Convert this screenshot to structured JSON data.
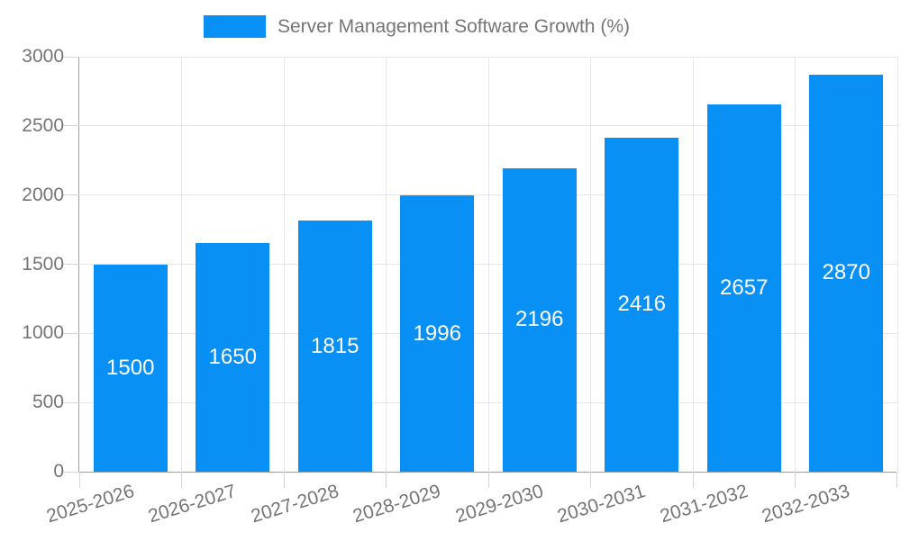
{
  "chart_data": {
    "type": "bar",
    "title": "Server Management Software Growth (%)",
    "categories": [
      "2025-2026",
      "2026-2027",
      "2027-2028",
      "2028-2029",
      "2029-2030",
      "2030-2031",
      "2031-2032",
      "2032-2033"
    ],
    "values": [
      1500,
      1650,
      1815,
      1996,
      2196,
      2416,
      2657,
      2870
    ],
    "value_labels": [
      "1500",
      "1650",
      "1815",
      "1996",
      "2196",
      "2416",
      "2657",
      "2870"
    ],
    "xlabel": "",
    "ylabel": "",
    "ylim": [
      0,
      3000
    ],
    "yticks": [
      0,
      500,
      1000,
      1500,
      2000,
      2500,
      3000
    ],
    "ytick_labels": [
      "0",
      "500",
      "1000",
      "1500",
      "2000",
      "2500",
      "3000"
    ],
    "grid": true,
    "legend_position": "top",
    "colors": {
      "bar": "#0890f4",
      "bar_value_text": "#ffffff",
      "axis_text": "#757575",
      "gridline": "#e6e6e6",
      "tick": "#d4d4d4",
      "axis_line": "#9e9e9e",
      "background": "#ffffff"
    }
  }
}
